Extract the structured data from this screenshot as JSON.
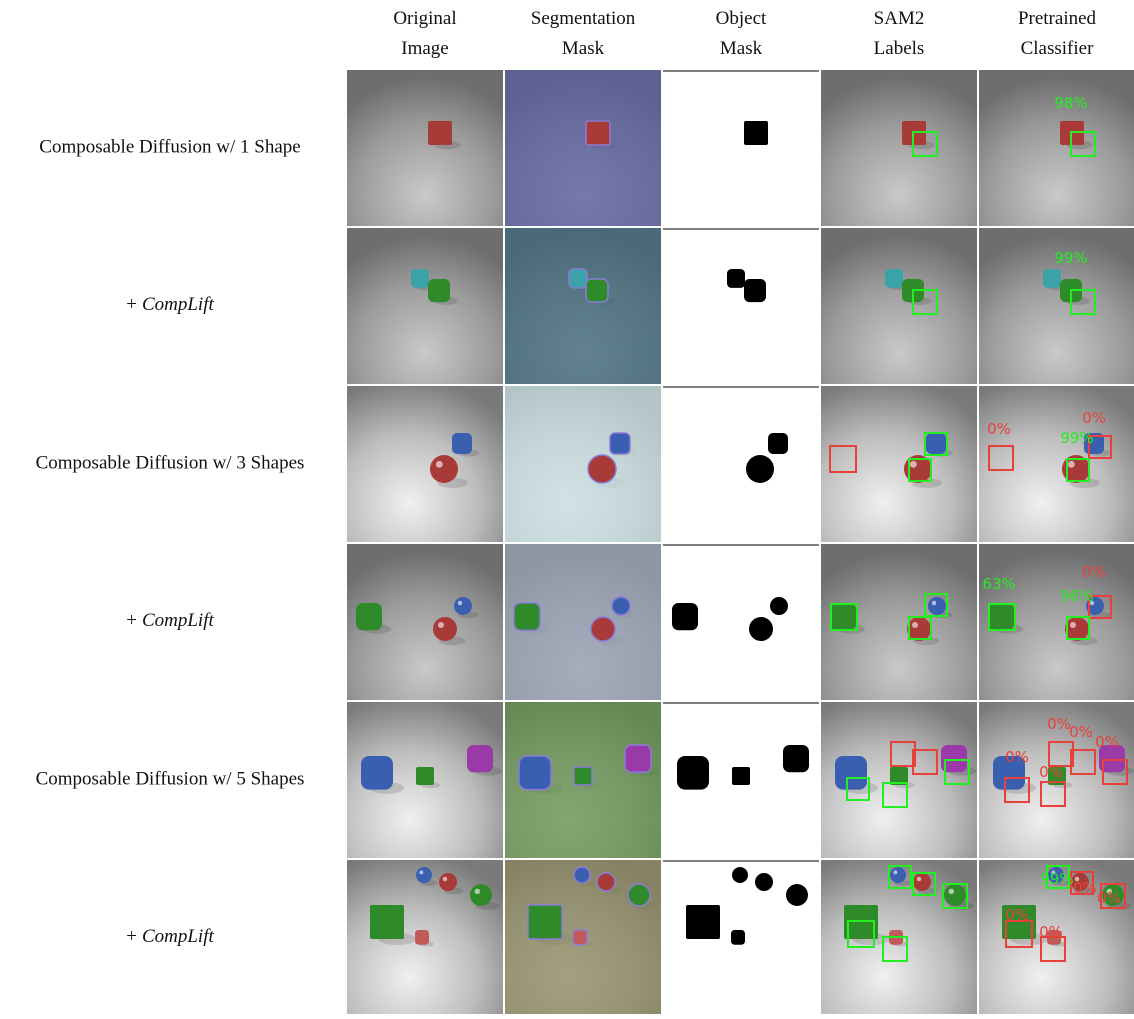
{
  "header": {
    "columns": [
      [
        "Original",
        "Image"
      ],
      [
        "Segmentation",
        "Mask"
      ],
      [
        "Object",
        "Mask"
      ],
      [
        "SAM2",
        "Labels"
      ],
      [
        "Pretrained",
        "Classifier"
      ]
    ]
  },
  "rows": [
    {
      "label": "Composable Diffusion w/ 1 Shape",
      "classifier_scores": [
        "98%"
      ]
    },
    {
      "label_prefix": "+",
      "label_emph": "CompLift",
      "classifier_scores": [
        "99%"
      ]
    },
    {
      "label": "Composable Diffusion w/ 3 Shapes",
      "classifier_scores": [
        "0%",
        "0%",
        "99%"
      ]
    },
    {
      "label_prefix": "+",
      "label_emph": "CompLift",
      "classifier_scores": [
        "63%",
        "0%",
        "96%"
      ]
    },
    {
      "label": "Composable Diffusion w/ 5 Shapes",
      "classifier_scores": [
        "0%",
        "0%",
        "0%",
        "0%",
        "0%"
      ]
    },
    {
      "label_prefix": "+",
      "label_emph": "CompLift",
      "classifier_scores": [
        "99%",
        "0%",
        "0%",
        "0%",
        "0%"
      ]
    }
  ]
}
